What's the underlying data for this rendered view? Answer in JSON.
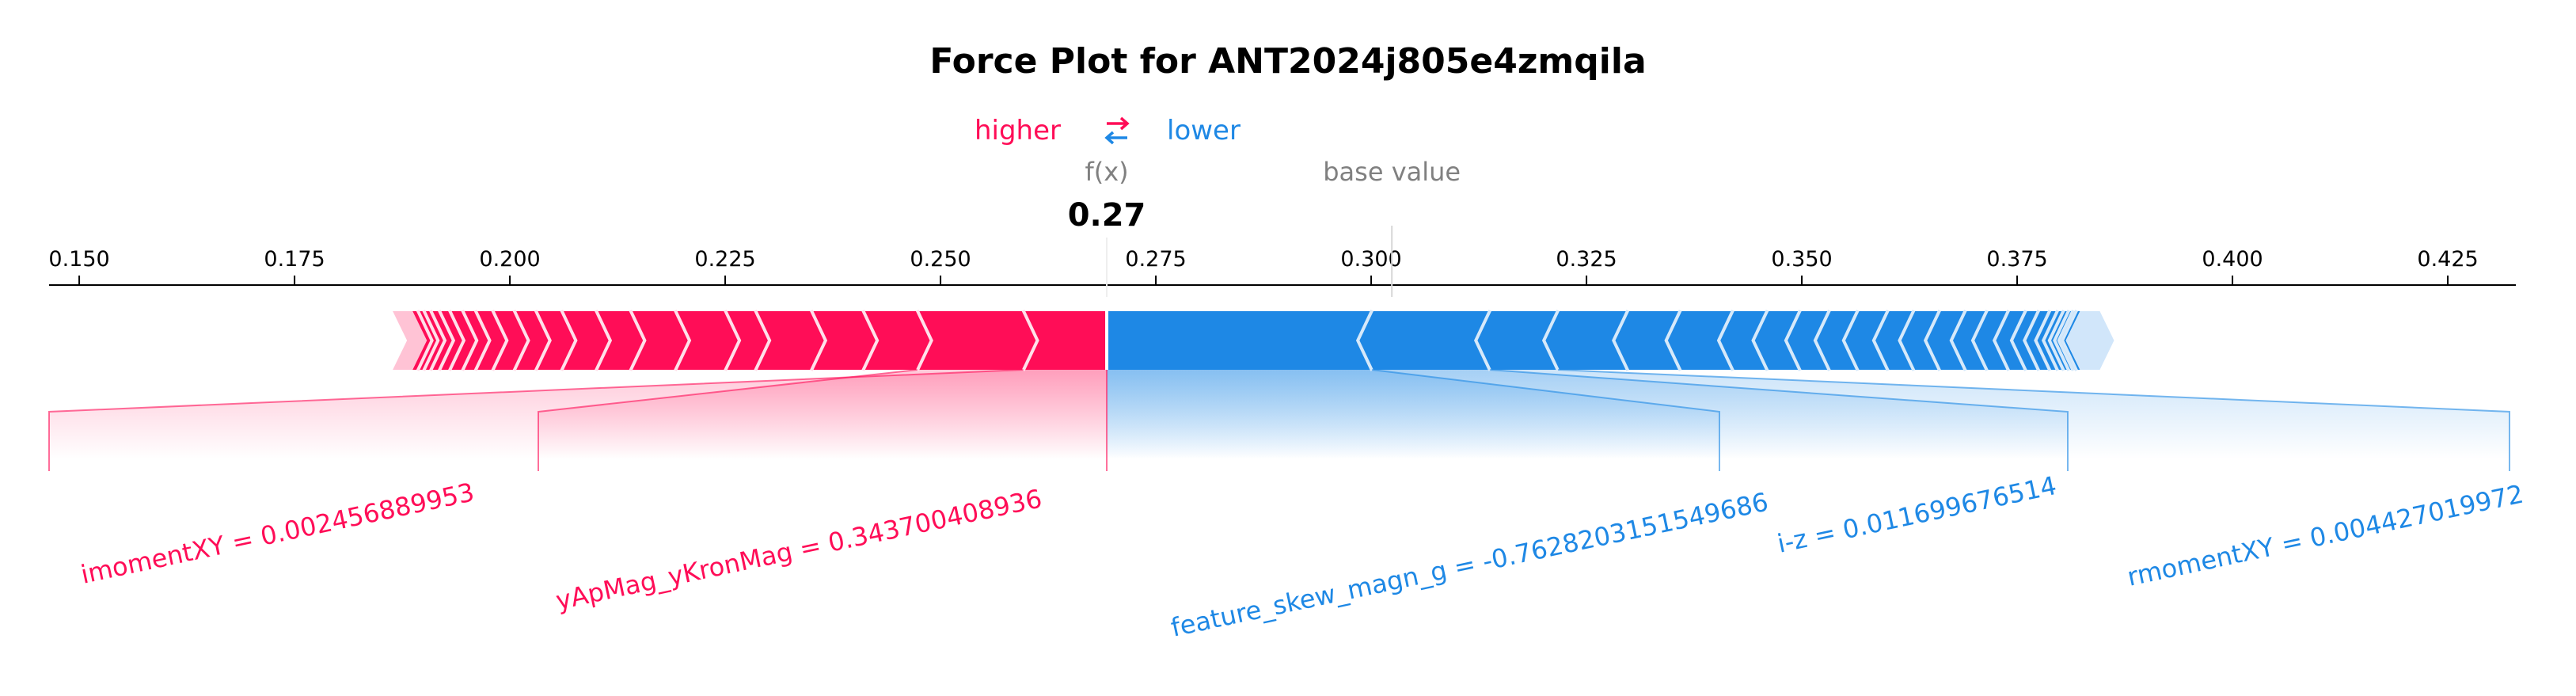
{
  "chart_data": {
    "type": "force",
    "title": "Force Plot for ANT2024j805e4zmqila",
    "legend": {
      "higher": "higher",
      "lower": "lower",
      "arrow": "⇄"
    },
    "fx_label": "f(x)",
    "base_value_label": "base value",
    "fx_value_text": "0.27",
    "output_value": 0.2693,
    "base_value": 0.3024,
    "xlim": [
      0.1465,
      0.4329
    ],
    "ticks": [
      0.15,
      0.175,
      0.2,
      0.225,
      0.25,
      0.275,
      0.3,
      0.325,
      0.35,
      0.375,
      0.4,
      0.425
    ],
    "tick_labels": [
      "0.150",
      "0.175",
      "0.200",
      "0.225",
      "0.250",
      "0.275",
      "0.300",
      "0.325",
      "0.350",
      "0.375",
      "0.400",
      "0.425"
    ],
    "positive_segment_boundaries": [
      0.2693,
      0.2596,
      0.2473,
      0.241,
      0.235,
      0.2285,
      0.225,
      0.2192,
      0.214,
      0.21,
      0.206,
      0.203,
      0.2005,
      0.198,
      0.196,
      0.1945,
      0.193,
      0.1918,
      0.1908,
      0.19,
      0.1893,
      0.1887
    ],
    "negative_segment_boundaries": [
      0.2693,
      0.3001,
      0.3138,
      0.3217,
      0.3298,
      0.3359,
      0.342,
      0.346,
      0.3498,
      0.3532,
      0.3565,
      0.36,
      0.363,
      0.366,
      0.369,
      0.3715,
      0.374,
      0.376,
      0.3775,
      0.3788,
      0.3797,
      0.3804,
      0.381,
      0.3815,
      0.3819,
      0.3823
    ],
    "features": [
      {
        "label": "imomentXY = 0.002456889953",
        "direction": "higher",
        "value_left": 0.2596,
        "value_right": 0.2693
      },
      {
        "label": "yApMag_yKronMag = 0.343700408936",
        "direction": "higher",
        "value_left": 0.2473,
        "value_right": 0.2596
      },
      {
        "label": "feature_skew_magn_g = -0.7628203151549686",
        "direction": "lower",
        "value_left": 0.2693,
        "value_right": 0.3001
      },
      {
        "label": "i-z = 0.011699676514",
        "direction": "lower",
        "value_left": 0.3001,
        "value_right": 0.3138
      },
      {
        "label": "rmomentXY = 0.004427019972",
        "direction": "lower",
        "value_left": 0.3138,
        "value_right": 0.3217
      }
    ],
    "colors": {
      "positive": "#ff0d57",
      "negative": "#1e88e5",
      "positive_light": "#ffc3d5",
      "negative_light": "#d1e6fa",
      "neutral": "#808080"
    }
  }
}
